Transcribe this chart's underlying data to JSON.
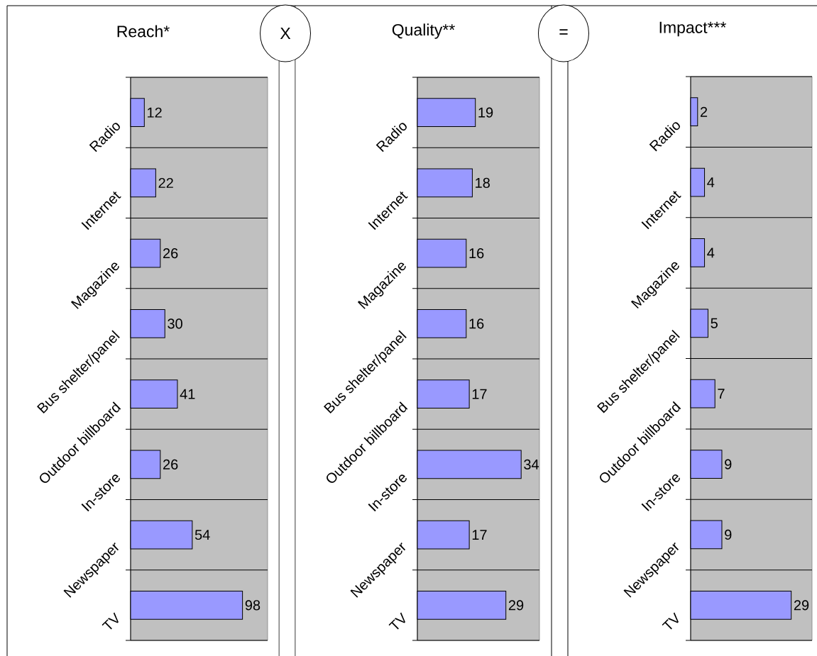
{
  "chart_data": [
    {
      "type": "bar",
      "orientation": "horizontal",
      "title": "Reach*",
      "categories": [
        "Radio",
        "Internet",
        "Magazine",
        "Bus shelter/panel",
        "Outdoor billboard",
        "In-store",
        "Newspaper",
        "TV"
      ],
      "values": [
        12,
        22,
        26,
        30,
        41,
        26,
        54,
        98
      ],
      "color": "#9999ff",
      "xlim": [
        0,
        120
      ],
      "tick_labels": "y",
      "grid": "y",
      "data_labels": true,
      "annotations": [
        "X"
      ]
    },
    {
      "type": "bar",
      "orientation": "horizontal",
      "title": "Quality**",
      "categories": [
        "Radio",
        "Internet",
        "Magazine",
        "Bus shelter/panel",
        "Outdoor billboard",
        "In-store",
        "Newspaper",
        "TV"
      ],
      "values": [
        19,
        18,
        16,
        16,
        17,
        34,
        17,
        29
      ],
      "color": "#9999ff",
      "xlim": [
        0,
        40
      ],
      "tick_labels": "y",
      "grid": "y",
      "data_labels": true,
      "annotations": [
        "="
      ]
    },
    {
      "type": "bar",
      "orientation": "horizontal",
      "title": "Impact***",
      "categories": [
        "Radio",
        "Internet",
        "Magazine",
        "Bus shelter/panel",
        "Outdoor billboard",
        "In-store",
        "Newspaper",
        "TV"
      ],
      "values": [
        2,
        4,
        4,
        5,
        7,
        9,
        9,
        29
      ],
      "color": "#9999ff",
      "xlim": [
        0,
        35
      ],
      "tick_labels": "y",
      "grid": "y",
      "data_labels": true
    }
  ]
}
